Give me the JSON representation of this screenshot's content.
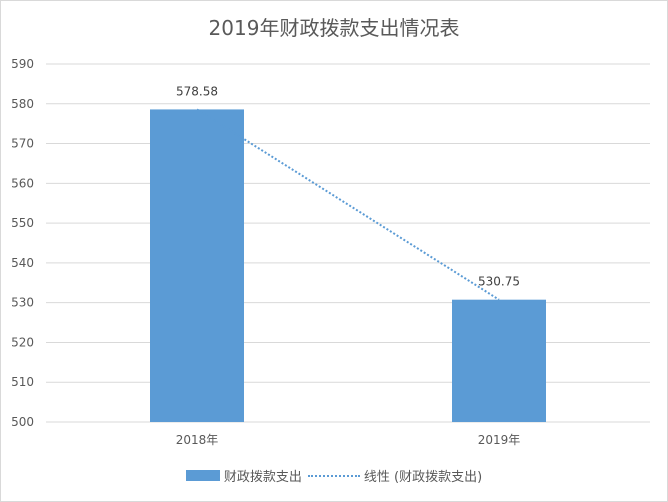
{
  "chart_data": {
    "type": "bar",
    "title": "2019年财政拨款支出情况表",
    "categories": [
      "2018年",
      "2019年"
    ],
    "series": [
      {
        "name": "财政拨款支出",
        "values": [
          578.58,
          530.75
        ],
        "color": "#5b9bd5"
      }
    ],
    "trendline": {
      "name": "线性 (财政拨款支出)",
      "type": "linear",
      "style": "dotted",
      "color": "#5b9bd5"
    },
    "data_labels": [
      "578.58",
      "530.75"
    ],
    "ylim": [
      500,
      590
    ],
    "yticks": [
      500,
      510,
      520,
      530,
      540,
      550,
      560,
      570,
      580,
      590
    ],
    "grid": true,
    "legend_position": "bottom",
    "xlabel": "",
    "ylabel": ""
  }
}
